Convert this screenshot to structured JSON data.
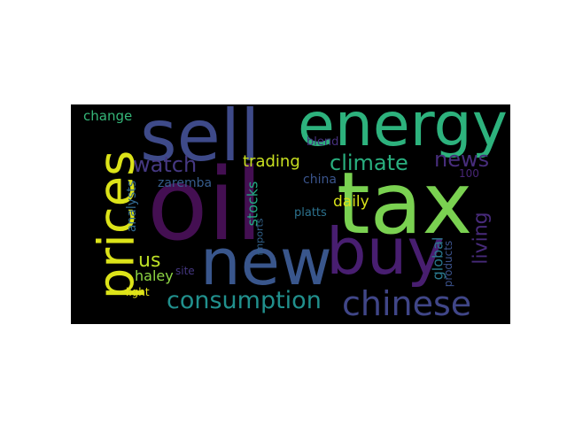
{
  "word_cloud": {
    "background": "#000000",
    "words": [
      {
        "text": "oil",
        "color": "#440f52"
      },
      {
        "text": "tax",
        "color": "#7ad151"
      },
      {
        "text": "energy",
        "color": "#2db27d"
      },
      {
        "text": "sell",
        "color": "#3e4a89"
      },
      {
        "text": "new",
        "color": "#39568c"
      },
      {
        "text": "buy",
        "color": "#481e70"
      },
      {
        "text": "prices",
        "color": "#dce319"
      },
      {
        "text": "chinese",
        "color": "#404688"
      },
      {
        "text": "consumption",
        "color": "#21908d"
      },
      {
        "text": "climate",
        "color": "#29af7f"
      },
      {
        "text": "watch",
        "color": "#453882"
      },
      {
        "text": "news",
        "color": "#472d7b"
      },
      {
        "text": "living",
        "color": "#472a7a"
      },
      {
        "text": "trading",
        "color": "#c8e020"
      },
      {
        "text": "us",
        "color": "#bddf26"
      },
      {
        "text": "daily",
        "color": "#d8e219"
      },
      {
        "text": "china",
        "color": "#3a548c"
      },
      {
        "text": "zaremba",
        "color": "#365d8d"
      },
      {
        "text": "stocks",
        "color": "#23a983"
      },
      {
        "text": "global",
        "color": "#2a788e"
      },
      {
        "text": "haley",
        "color": "#8fd744"
      },
      {
        "text": "change",
        "color": "#35b779"
      },
      {
        "text": "analysts",
        "color": "#31688e"
      },
      {
        "text": "products",
        "color": "#3b528b"
      },
      {
        "text": "platts",
        "color": "#2c728e"
      },
      {
        "text": "imports",
        "color": "#33638d"
      },
      {
        "text": "blend",
        "color": "#46307e"
      },
      {
        "text": "100",
        "color": "#482576"
      },
      {
        "text": "site",
        "color": "#453781"
      },
      {
        "text": "light",
        "color": "#e5e419"
      }
    ]
  }
}
